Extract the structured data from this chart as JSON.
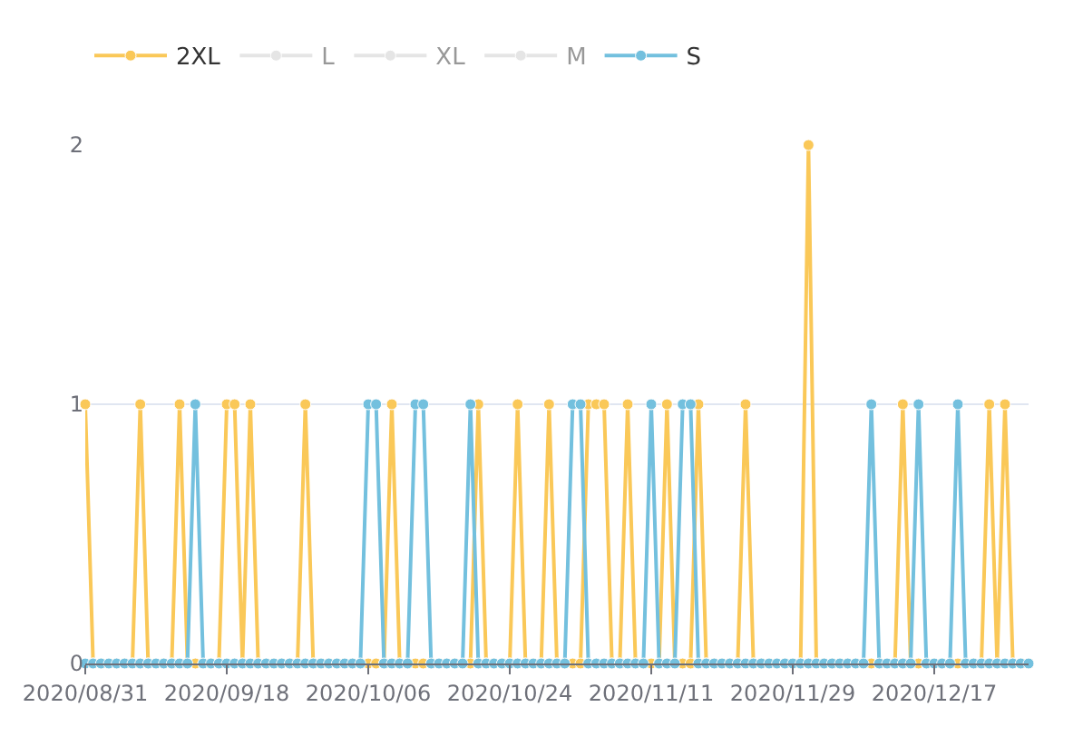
{
  "chart_data": {
    "type": "line",
    "x": [
      "2020-08-31",
      "2020-09-01",
      "2020-09-02",
      "2020-09-03",
      "2020-09-04",
      "2020-09-05",
      "2020-09-06",
      "2020-09-07",
      "2020-09-08",
      "2020-09-09",
      "2020-09-10",
      "2020-09-11",
      "2020-09-12",
      "2020-09-13",
      "2020-09-14",
      "2020-09-15",
      "2020-09-16",
      "2020-09-17",
      "2020-09-18",
      "2020-09-19",
      "2020-09-20",
      "2020-09-21",
      "2020-09-22",
      "2020-09-23",
      "2020-09-24",
      "2020-09-25",
      "2020-09-26",
      "2020-09-27",
      "2020-09-28",
      "2020-09-29",
      "2020-09-30",
      "2020-10-01",
      "2020-10-02",
      "2020-10-03",
      "2020-10-04",
      "2020-10-05",
      "2020-10-06",
      "2020-10-07",
      "2020-10-08",
      "2020-10-09",
      "2020-10-10",
      "2020-10-11",
      "2020-10-12",
      "2020-10-13",
      "2020-10-14",
      "2020-10-15",
      "2020-10-16",
      "2020-10-17",
      "2020-10-18",
      "2020-10-19",
      "2020-10-20",
      "2020-10-21",
      "2020-10-22",
      "2020-10-23",
      "2020-10-24",
      "2020-10-25",
      "2020-10-26",
      "2020-10-27",
      "2020-10-28",
      "2020-10-29",
      "2020-10-30",
      "2020-10-31",
      "2020-11-01",
      "2020-11-02",
      "2020-11-03",
      "2020-11-04",
      "2020-11-05",
      "2020-11-06",
      "2020-11-07",
      "2020-11-08",
      "2020-11-09",
      "2020-11-10",
      "2020-11-11",
      "2020-11-12",
      "2020-11-13",
      "2020-11-14",
      "2020-11-15",
      "2020-11-16",
      "2020-11-17",
      "2020-11-18",
      "2020-11-19",
      "2020-11-20",
      "2020-11-21",
      "2020-11-22",
      "2020-11-23",
      "2020-11-24",
      "2020-11-25",
      "2020-11-26",
      "2020-11-27",
      "2020-11-28",
      "2020-11-29",
      "2020-11-30",
      "2020-12-01",
      "2020-12-02",
      "2020-12-03",
      "2020-12-04",
      "2020-12-05",
      "2020-12-06",
      "2020-12-07",
      "2020-12-08",
      "2020-12-09",
      "2020-12-10",
      "2020-12-11",
      "2020-12-12",
      "2020-12-13",
      "2020-12-14",
      "2020-12-15",
      "2020-12-16",
      "2020-12-17",
      "2020-12-18",
      "2020-12-19",
      "2020-12-20",
      "2020-12-21",
      "2020-12-22",
      "2020-12-23",
      "2020-12-24",
      "2020-12-25",
      "2020-12-26",
      "2020-12-27",
      "2020-12-28",
      "2020-12-29"
    ],
    "series": [
      {
        "name": "2XL",
        "color": "#fac858",
        "values": [
          1,
          0,
          0,
          0,
          0,
          0,
          0,
          1,
          0,
          0,
          0,
          0,
          1,
          0,
          0,
          0,
          0,
          0,
          1,
          1,
          0,
          1,
          0,
          0,
          0,
          0,
          0,
          0,
          1,
          0,
          0,
          0,
          0,
          0,
          0,
          0,
          0,
          0,
          0,
          1,
          0,
          0,
          0,
          0,
          0,
          0,
          0,
          0,
          0,
          0,
          1,
          0,
          0,
          0,
          0,
          1,
          0,
          0,
          0,
          1,
          0,
          0,
          0,
          0,
          1,
          1,
          1,
          0,
          0,
          1,
          0,
          0,
          0,
          0,
          1,
          0,
          0,
          0,
          1,
          0,
          0,
          0,
          0,
          0,
          1,
          0,
          0,
          0,
          0,
          0,
          0,
          0,
          2,
          0,
          0,
          0,
          0,
          0,
          0,
          0,
          0,
          0,
          0,
          0,
          1,
          0,
          0,
          0,
          0,
          0,
          0,
          0,
          0,
          0,
          0,
          1,
          0,
          1,
          0,
          0,
          0
        ]
      },
      {
        "name": "L",
        "color": "#cccccc",
        "values": [
          null,
          null,
          null,
          null,
          null,
          null,
          null,
          null,
          null,
          null,
          null,
          null,
          null,
          null,
          null,
          null,
          null,
          null,
          null,
          null,
          null,
          null,
          null,
          null,
          null,
          null,
          null,
          null,
          null,
          null,
          null,
          null,
          null,
          null,
          null,
          null,
          null,
          null,
          null,
          null,
          null,
          null,
          null,
          null,
          null,
          null,
          null,
          null,
          null,
          null,
          null,
          null,
          null,
          null,
          null,
          null,
          null,
          null,
          null,
          null,
          null,
          null,
          null,
          null,
          null,
          null,
          null,
          null,
          null,
          null,
          null,
          null,
          null,
          null,
          null,
          null,
          null,
          null,
          null,
          null,
          null,
          null,
          null,
          null,
          null,
          null,
          null,
          null,
          null,
          null,
          null,
          null,
          null,
          null,
          null,
          null,
          null,
          null,
          null,
          null,
          null,
          null,
          null,
          null,
          null,
          null,
          null,
          null,
          null,
          null,
          null,
          null,
          null,
          null,
          null,
          null,
          null,
          null,
          null,
          null,
          null
        ]
      },
      {
        "name": "XL",
        "color": "#cccccc",
        "values": [
          null,
          null,
          null,
          null,
          null,
          null,
          null,
          null,
          null,
          null,
          null,
          null,
          null,
          null,
          null,
          null,
          null,
          null,
          null,
          null,
          null,
          null,
          null,
          null,
          null,
          null,
          null,
          null,
          null,
          null,
          null,
          null,
          null,
          null,
          null,
          null,
          null,
          null,
          null,
          null,
          null,
          null,
          null,
          null,
          null,
          null,
          null,
          null,
          null,
          null,
          null,
          null,
          null,
          null,
          null,
          null,
          null,
          null,
          null,
          null,
          null,
          null,
          null,
          null,
          null,
          null,
          null,
          null,
          null,
          null,
          null,
          null,
          null,
          null,
          null,
          null,
          null,
          null,
          null,
          null,
          null,
          null,
          null,
          null,
          null,
          null,
          null,
          null,
          null,
          null,
          null,
          null,
          null,
          null,
          null,
          null,
          null,
          null,
          null,
          null,
          null,
          null,
          null,
          null,
          null,
          null,
          null,
          null,
          null,
          null,
          null,
          null,
          null,
          null,
          null,
          null,
          null,
          null,
          null,
          null,
          null
        ]
      },
      {
        "name": "M",
        "color": "#cccccc",
        "values": [
          null,
          null,
          null,
          null,
          null,
          null,
          null,
          null,
          null,
          null,
          null,
          null,
          null,
          null,
          null,
          null,
          null,
          null,
          null,
          null,
          null,
          null,
          null,
          null,
          null,
          null,
          null,
          null,
          null,
          null,
          null,
          null,
          null,
          null,
          null,
          null,
          null,
          null,
          null,
          null,
          null,
          null,
          null,
          null,
          null,
          null,
          null,
          null,
          null,
          null,
          null,
          null,
          null,
          null,
          null,
          null,
          null,
          null,
          null,
          null,
          null,
          null,
          null,
          null,
          null,
          null,
          null,
          null,
          null,
          null,
          null,
          null,
          null,
          null,
          null,
          null,
          null,
          null,
          null,
          null,
          null,
          null,
          null,
          null,
          null,
          null,
          null,
          null,
          null,
          null,
          null,
          null,
          null,
          null,
          null,
          null,
          null,
          null,
          null,
          null,
          null,
          null,
          null,
          null,
          null,
          null,
          null,
          null,
          null,
          null,
          null,
          null,
          null,
          null,
          null,
          null,
          null,
          null,
          null,
          null,
          null
        ]
      },
      {
        "name": "S",
        "color": "#73c0de",
        "values": [
          0,
          0,
          0,
          0,
          0,
          0,
          0,
          0,
          0,
          0,
          0,
          0,
          0,
          0,
          1,
          0,
          0,
          0,
          0,
          0,
          0,
          0,
          0,
          0,
          0,
          0,
          0,
          0,
          0,
          0,
          0,
          0,
          0,
          0,
          0,
          0,
          1,
          1,
          0,
          0,
          0,
          0,
          1,
          1,
          0,
          0,
          0,
          0,
          0,
          1,
          0,
          0,
          0,
          0,
          0,
          0,
          0,
          0,
          0,
          0,
          0,
          0,
          1,
          1,
          0,
          0,
          0,
          0,
          0,
          0,
          0,
          0,
          1,
          0,
          0,
          0,
          1,
          1,
          0,
          0,
          0,
          0,
          0,
          0,
          0,
          0,
          0,
          0,
          0,
          0,
          0,
          0,
          0,
          0,
          0,
          0,
          0,
          0,
          0,
          0,
          1,
          0,
          0,
          0,
          0,
          0,
          1,
          0,
          0,
          0,
          0,
          1,
          0,
          0,
          0,
          0,
          0,
          0,
          0,
          0,
          0
        ]
      }
    ],
    "xlim": [
      "2020-08-31",
      "2020-12-29"
    ],
    "xticks": [
      {
        "value": "2020-08-31",
        "label": "2020/08/31"
      },
      {
        "value": "2020-09-18",
        "label": "2020/09/18"
      },
      {
        "value": "2020-10-06",
        "label": "2020/10/06"
      },
      {
        "value": "2020-10-24",
        "label": "2020/10/24"
      },
      {
        "value": "2020-11-11",
        "label": "2020/11/11"
      },
      {
        "value": "2020-11-29",
        "label": "2020/11/29"
      },
      {
        "value": "2020-12-17",
        "label": "2020/12/17"
      }
    ],
    "ylim": [
      0,
      2
    ],
    "yticks": [
      0,
      1,
      2
    ],
    "grid": "y",
    "legend": "top",
    "marker": "circle",
    "line_style": "solid"
  }
}
